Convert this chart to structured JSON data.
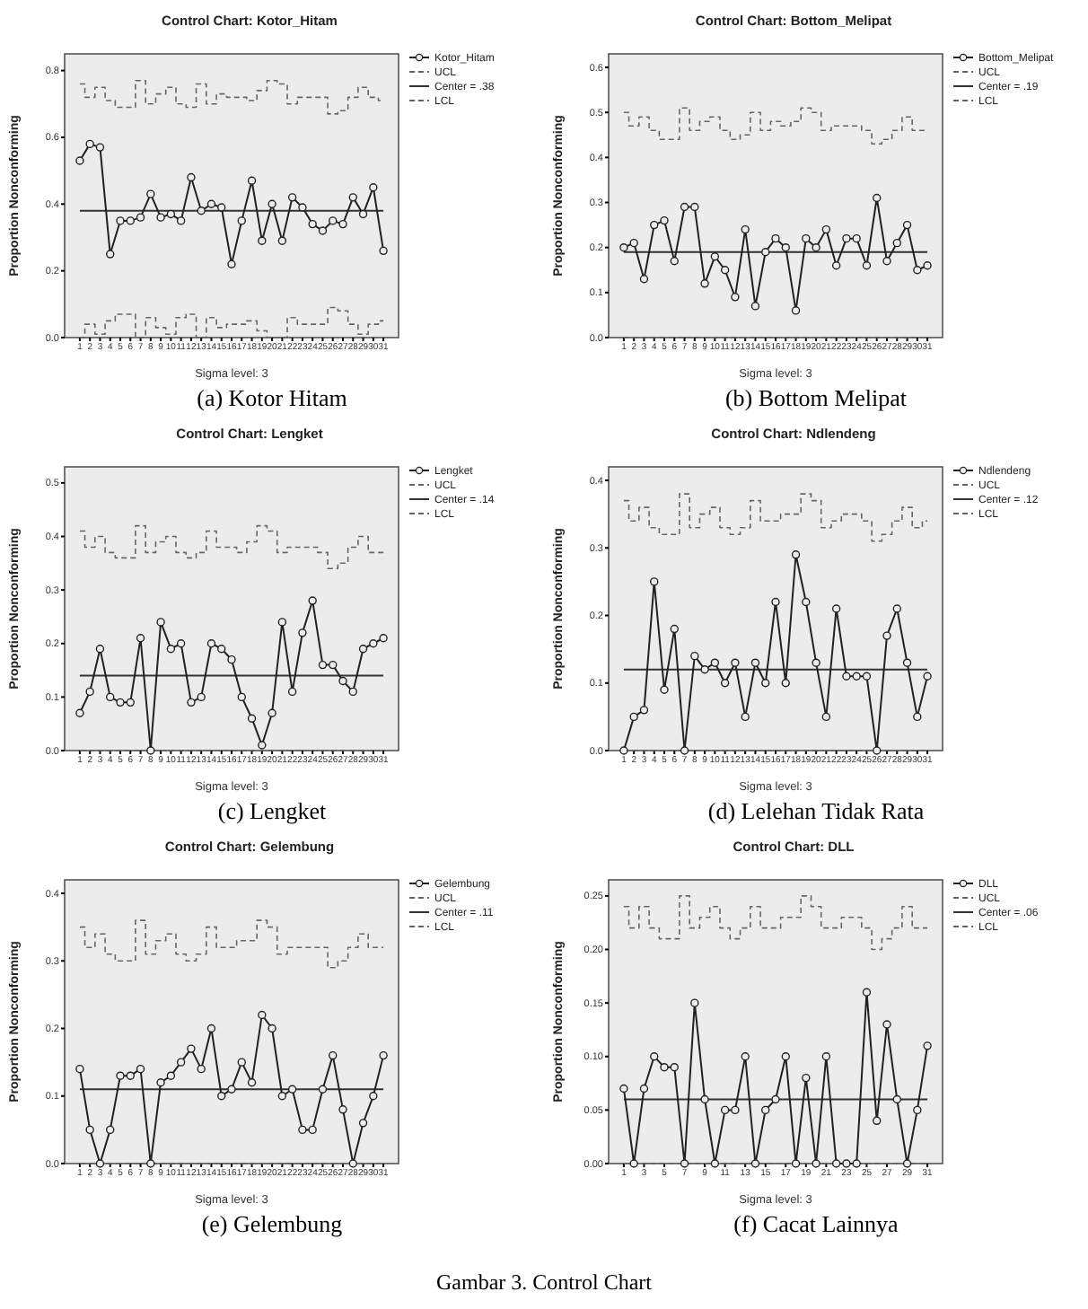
{
  "chart_data": [
    {
      "type": "line",
      "title": "Control Chart: Kotor_Hitam",
      "xlabel": "Sigma level: 3",
      "ylabel": "Proportion Nonconforming",
      "legend": "top right",
      "x": [
        1,
        2,
        3,
        4,
        5,
        6,
        7,
        8,
        9,
        10,
        11,
        12,
        13,
        14,
        15,
        16,
        17,
        18,
        19,
        20,
        21,
        22,
        23,
        24,
        25,
        26,
        27,
        28,
        29,
        30,
        31
      ],
      "xlim": [
        -0.5,
        32.5
      ],
      "xticks": [
        1,
        2,
        3,
        4,
        5,
        6,
        7,
        8,
        9,
        10,
        11,
        12,
        13,
        14,
        15,
        16,
        17,
        18,
        19,
        20,
        21,
        22,
        23,
        24,
        25,
        26,
        27,
        28,
        29,
        30,
        31
      ],
      "ylim": [
        0,
        0.85
      ],
      "yticks": [
        {
          "value": 0,
          "label": "0.0"
        },
        {
          "value": 0.2,
          "label": "0.2"
        },
        {
          "value": 0.4,
          "label": "0.4"
        },
        {
          "value": 0.6,
          "label": "0.6"
        },
        {
          "value": 0.8,
          "label": "0.8"
        }
      ],
      "series": [
        {
          "name": "Kotor_Hitam",
          "marker": "circle",
          "color": "#222222",
          "values": [
            0.53,
            0.58,
            0.57,
            0.25,
            0.35,
            0.35,
            0.36,
            0.43,
            0.36,
            0.37,
            0.35,
            0.48,
            0.38,
            0.4,
            0.39,
            0.22,
            0.35,
            0.47,
            0.29,
            0.4,
            0.29,
            0.42,
            0.39,
            0.34,
            0.32,
            0.35,
            0.34,
            0.42,
            0.37,
            0.45,
            0.26
          ]
        },
        {
          "name": "UCL",
          "type": "step",
          "line_style": "dashed",
          "color": "#666666",
          "values": [
            0.76,
            0.72,
            0.75,
            0.71,
            0.69,
            0.69,
            0.77,
            0.7,
            0.73,
            0.75,
            0.7,
            0.69,
            0.76,
            0.7,
            0.73,
            0.72,
            0.72,
            0.71,
            0.74,
            0.77,
            0.76,
            0.7,
            0.72,
            0.72,
            0.72,
            0.67,
            0.68,
            0.72,
            0.75,
            0.72,
            0.71
          ]
        },
        {
          "name": "Center = .38",
          "color": "#333333",
          "values": [
            0.38,
            0.38,
            0.38,
            0.38,
            0.38,
            0.38,
            0.38,
            0.38,
            0.38,
            0.38,
            0.38,
            0.38,
            0.38,
            0.38,
            0.38,
            0.38,
            0.38,
            0.38,
            0.38,
            0.38,
            0.38,
            0.38,
            0.38,
            0.38,
            0.38,
            0.38,
            0.38,
            0.38,
            0.38,
            0.38,
            0.38
          ]
        },
        {
          "name": "LCL",
          "type": "step",
          "line_style": "dashed",
          "color": "#666666",
          "values": [
            0,
            0.04,
            0.01,
            0.05,
            0.07,
            0.07,
            0,
            0.06,
            0.03,
            0.01,
            0.06,
            0.07,
            0,
            0.06,
            0.03,
            0.04,
            0.04,
            0.05,
            0.02,
            0,
            0,
            0.06,
            0.04,
            0.04,
            0.04,
            0.09,
            0.08,
            0.04,
            0.01,
            0.04,
            0.05
          ]
        }
      ],
      "annotations": [
        "(a) Kotor Hitam"
      ]
    },
    {
      "type": "line",
      "title": "Control Chart: Bottom_Melipat",
      "xlabel": "Sigma level: 3",
      "ylabel": "Proportion Nonconforming",
      "legend": "top right",
      "x": [
        1,
        2,
        3,
        4,
        5,
        6,
        7,
        8,
        9,
        10,
        11,
        12,
        13,
        14,
        15,
        16,
        17,
        18,
        19,
        20,
        21,
        22,
        23,
        24,
        25,
        26,
        27,
        28,
        29,
        30,
        31
      ],
      "xlim": [
        -0.5,
        32.5
      ],
      "xticks": [
        1,
        2,
        3,
        4,
        5,
        6,
        7,
        8,
        9,
        10,
        11,
        12,
        13,
        14,
        15,
        16,
        17,
        18,
        19,
        20,
        21,
        22,
        23,
        24,
        25,
        26,
        27,
        28,
        29,
        30,
        31
      ],
      "ylim": [
        0,
        0.63
      ],
      "yticks": [
        {
          "value": 0,
          "label": "0.0"
        },
        {
          "value": 0.1,
          "label": "0.1"
        },
        {
          "value": 0.2,
          "label": "0.2"
        },
        {
          "value": 0.3,
          "label": "0.3"
        },
        {
          "value": 0.4,
          "label": "0.4"
        },
        {
          "value": 0.5,
          "label": "0.5"
        },
        {
          "value": 0.6,
          "label": "0.6"
        }
      ],
      "series": [
        {
          "name": "Bottom_Melipat",
          "marker": "circle",
          "color": "#222222",
          "values": [
            0.2,
            0.21,
            0.13,
            0.25,
            0.26,
            0.17,
            0.29,
            0.29,
            0.12,
            0.18,
            0.15,
            0.09,
            0.24,
            0.07,
            0.19,
            0.22,
            0.2,
            0.06,
            0.22,
            0.2,
            0.24,
            0.16,
            0.22,
            0.22,
            0.16,
            0.31,
            0.17,
            0.21,
            0.25,
            0.15,
            0.16
          ]
        },
        {
          "name": "UCL",
          "type": "step",
          "line_style": "dashed",
          "color": "#666666",
          "values": [
            0.5,
            0.47,
            0.49,
            0.46,
            0.44,
            0.44,
            0.51,
            0.46,
            0.48,
            0.49,
            0.46,
            0.44,
            0.45,
            0.5,
            0.46,
            0.48,
            0.47,
            0.48,
            0.51,
            0.5,
            0.46,
            0.47,
            0.47,
            0.47,
            0.46,
            0.43,
            0.44,
            0.46,
            0.49,
            0.46,
            0.46
          ]
        },
        {
          "name": "Center = .19",
          "color": "#333333",
          "values": [
            0.19,
            0.19,
            0.19,
            0.19,
            0.19,
            0.19,
            0.19,
            0.19,
            0.19,
            0.19,
            0.19,
            0.19,
            0.19,
            0.19,
            0.19,
            0.19,
            0.19,
            0.19,
            0.19,
            0.19,
            0.19,
            0.19,
            0.19,
            0.19,
            0.19,
            0.19,
            0.19,
            0.19,
            0.19,
            0.19,
            0.19
          ]
        },
        {
          "name": "LCL",
          "type": "step",
          "line_style": "dashed",
          "color": "#666666",
          "values": [
            0,
            0,
            0,
            0,
            0,
            0,
            0,
            0,
            0,
            0,
            0,
            0,
            0,
            0,
            0,
            0,
            0,
            0,
            0,
            0,
            0,
            0,
            0,
            0,
            0,
            0,
            0,
            0,
            0,
            0,
            0
          ]
        }
      ],
      "annotations": [
        "(b) Bottom Melipat"
      ]
    },
    {
      "type": "line",
      "title": "Control Chart: Lengket",
      "xlabel": "Sigma level: 3",
      "ylabel": "Proportion Nonconforming",
      "legend": "top right",
      "x": [
        1,
        2,
        3,
        4,
        5,
        6,
        7,
        8,
        9,
        10,
        11,
        12,
        13,
        14,
        15,
        16,
        17,
        18,
        19,
        20,
        21,
        22,
        23,
        24,
        25,
        26,
        27,
        28,
        29,
        30,
        31
      ],
      "xlim": [
        -0.5,
        32.5
      ],
      "xticks": [
        1,
        2,
        3,
        4,
        5,
        6,
        7,
        8,
        9,
        10,
        11,
        12,
        13,
        14,
        15,
        16,
        17,
        18,
        19,
        20,
        21,
        22,
        23,
        24,
        25,
        26,
        27,
        28,
        29,
        30,
        31
      ],
      "ylim": [
        0,
        0.53
      ],
      "yticks": [
        {
          "value": 0,
          "label": "0.0"
        },
        {
          "value": 0.1,
          "label": "0.1"
        },
        {
          "value": 0.2,
          "label": "0.2"
        },
        {
          "value": 0.3,
          "label": "0.3"
        },
        {
          "value": 0.4,
          "label": "0.4"
        },
        {
          "value": 0.5,
          "label": "0.5"
        }
      ],
      "series": [
        {
          "name": "Lengket",
          "marker": "circle",
          "color": "#222222",
          "values": [
            0.07,
            0.11,
            0.19,
            0.1,
            0.09,
            0.09,
            0.21,
            0,
            0.24,
            0.19,
            0.2,
            0.09,
            0.1,
            0.2,
            0.19,
            0.17,
            0.1,
            0.06,
            0.01,
            0.07,
            0.24,
            0.11,
            0.22,
            0.28,
            0.16,
            0.16,
            0.13,
            0.11,
            0.19,
            0.2,
            0.21
          ]
        },
        {
          "name": "UCL",
          "type": "step",
          "line_style": "dashed",
          "color": "#666666",
          "values": [
            0.41,
            0.38,
            0.4,
            0.37,
            0.36,
            0.36,
            0.42,
            0.37,
            0.39,
            0.4,
            0.37,
            0.36,
            0.37,
            0.41,
            0.38,
            0.38,
            0.37,
            0.39,
            0.42,
            0.41,
            0.37,
            0.38,
            0.38,
            0.38,
            0.37,
            0.34,
            0.35,
            0.38,
            0.4,
            0.37,
            0.37
          ]
        },
        {
          "name": "Center = .14",
          "color": "#333333",
          "values": [
            0.14,
            0.14,
            0.14,
            0.14,
            0.14,
            0.14,
            0.14,
            0.14,
            0.14,
            0.14,
            0.14,
            0.14,
            0.14,
            0.14,
            0.14,
            0.14,
            0.14,
            0.14,
            0.14,
            0.14,
            0.14,
            0.14,
            0.14,
            0.14,
            0.14,
            0.14,
            0.14,
            0.14,
            0.14,
            0.14,
            0.14
          ]
        },
        {
          "name": "LCL",
          "type": "step",
          "line_style": "dashed",
          "color": "#666666",
          "values": [
            0,
            0,
            0,
            0,
            0,
            0,
            0,
            0,
            0,
            0,
            0,
            0,
            0,
            0,
            0,
            0,
            0,
            0,
            0,
            0,
            0,
            0,
            0,
            0,
            0,
            0,
            0,
            0,
            0,
            0,
            0
          ]
        }
      ],
      "annotations": [
        "(c) Lengket"
      ]
    },
    {
      "type": "line",
      "title": "Control Chart: Ndlendeng",
      "xlabel": "Sigma level: 3",
      "ylabel": "Proportion Nonconforming",
      "legend": "top right",
      "x": [
        1,
        2,
        3,
        4,
        5,
        6,
        7,
        8,
        9,
        10,
        11,
        12,
        13,
        14,
        15,
        16,
        17,
        18,
        19,
        20,
        21,
        22,
        23,
        24,
        25,
        26,
        27,
        28,
        29,
        30,
        31
      ],
      "xlim": [
        -0.5,
        32.5
      ],
      "xticks": [
        1,
        2,
        3,
        4,
        5,
        6,
        7,
        8,
        9,
        10,
        11,
        12,
        13,
        14,
        15,
        16,
        17,
        18,
        19,
        20,
        21,
        22,
        23,
        24,
        25,
        26,
        27,
        28,
        29,
        30,
        31
      ],
      "ylim": [
        0,
        0.42
      ],
      "yticks": [
        {
          "value": 0,
          "label": "0.0"
        },
        {
          "value": 0.1,
          "label": "0.1"
        },
        {
          "value": 0.2,
          "label": "0.2"
        },
        {
          "value": 0.3,
          "label": "0.3"
        },
        {
          "value": 0.4,
          "label": "0.4"
        }
      ],
      "series": [
        {
          "name": "Ndlendeng",
          "marker": "circle",
          "color": "#222222",
          "values": [
            0,
            0.05,
            0.06,
            0.25,
            0.09,
            0.18,
            0,
            0.14,
            0.12,
            0.13,
            0.1,
            0.13,
            0.05,
            0.13,
            0.1,
            0.22,
            0.1,
            0.29,
            0.22,
            0.13,
            0.05,
            0.21,
            0.11,
            0.11,
            0.11,
            0,
            0.17,
            0.21,
            0.13,
            0.05,
            0.11
          ]
        },
        {
          "name": "UCL",
          "type": "step",
          "line_style": "dashed",
          "color": "#666666",
          "values": [
            0.37,
            0.34,
            0.36,
            0.33,
            0.32,
            0.32,
            0.38,
            0.33,
            0.35,
            0.36,
            0.33,
            0.32,
            0.33,
            0.37,
            0.34,
            0.34,
            0.35,
            0.35,
            0.38,
            0.37,
            0.33,
            0.34,
            0.35,
            0.35,
            0.34,
            0.31,
            0.32,
            0.34,
            0.36,
            0.33,
            0.34
          ]
        },
        {
          "name": "Center = .12",
          "color": "#333333",
          "values": [
            0.12,
            0.12,
            0.12,
            0.12,
            0.12,
            0.12,
            0.12,
            0.12,
            0.12,
            0.12,
            0.12,
            0.12,
            0.12,
            0.12,
            0.12,
            0.12,
            0.12,
            0.12,
            0.12,
            0.12,
            0.12,
            0.12,
            0.12,
            0.12,
            0.12,
            0.12,
            0.12,
            0.12,
            0.12,
            0.12,
            0.12
          ]
        },
        {
          "name": "LCL",
          "type": "step",
          "line_style": "dashed",
          "color": "#666666",
          "values": [
            0,
            0,
            0,
            0,
            0,
            0,
            0,
            0,
            0,
            0,
            0,
            0,
            0,
            0,
            0,
            0,
            0,
            0,
            0,
            0,
            0,
            0,
            0,
            0,
            0,
            0,
            0,
            0,
            0,
            0,
            0
          ]
        }
      ],
      "annotations": [
        "(d) Lelehan Tidak Rata"
      ]
    },
    {
      "type": "line",
      "title": "Control Chart: Gelembung",
      "xlabel": "Sigma level: 3",
      "ylabel": "Proportion Nonconforming",
      "legend": "top right",
      "x": [
        1,
        2,
        3,
        4,
        5,
        6,
        7,
        8,
        9,
        10,
        11,
        12,
        13,
        14,
        15,
        16,
        17,
        18,
        19,
        20,
        21,
        22,
        23,
        24,
        25,
        26,
        27,
        28,
        29,
        30,
        31
      ],
      "xlim": [
        -0.5,
        32.5
      ],
      "xticks": [
        1,
        2,
        3,
        4,
        5,
        6,
        7,
        8,
        9,
        10,
        11,
        12,
        13,
        14,
        15,
        16,
        17,
        18,
        19,
        20,
        21,
        22,
        23,
        24,
        25,
        26,
        27,
        28,
        29,
        30,
        31
      ],
      "ylim": [
        0,
        0.42
      ],
      "yticks": [
        {
          "value": 0,
          "label": "0.0"
        },
        {
          "value": 0.1,
          "label": "0.1"
        },
        {
          "value": 0.2,
          "label": "0.2"
        },
        {
          "value": 0.3,
          "label": "0.3"
        },
        {
          "value": 0.4,
          "label": "0.4"
        }
      ],
      "series": [
        {
          "name": "Gelembung",
          "marker": "circle",
          "color": "#222222",
          "values": [
            0.14,
            0.05,
            0,
            0.05,
            0.13,
            0.13,
            0.14,
            0,
            0.12,
            0.13,
            0.15,
            0.17,
            0.14,
            0.2,
            0.1,
            0.11,
            0.15,
            0.12,
            0.22,
            0.2,
            0.1,
            0.11,
            0.05,
            0.05,
            0.11,
            0.16,
            0.08,
            0,
            0.06,
            0.1,
            0.16
          ]
        },
        {
          "name": "UCL",
          "type": "step",
          "line_style": "dashed",
          "color": "#666666",
          "values": [
            0.35,
            0.32,
            0.34,
            0.31,
            0.3,
            0.3,
            0.36,
            0.31,
            0.33,
            0.34,
            0.31,
            0.3,
            0.31,
            0.35,
            0.32,
            0.32,
            0.33,
            0.33,
            0.36,
            0.35,
            0.31,
            0.32,
            0.32,
            0.32,
            0.32,
            0.29,
            0.3,
            0.32,
            0.34,
            0.32,
            0.32
          ]
        },
        {
          "name": "Center = .11",
          "color": "#333333",
          "values": [
            0.11,
            0.11,
            0.11,
            0.11,
            0.11,
            0.11,
            0.11,
            0.11,
            0.11,
            0.11,
            0.11,
            0.11,
            0.11,
            0.11,
            0.11,
            0.11,
            0.11,
            0.11,
            0.11,
            0.11,
            0.11,
            0.11,
            0.11,
            0.11,
            0.11,
            0.11,
            0.11,
            0.11,
            0.11,
            0.11,
            0.11
          ]
        },
        {
          "name": "LCL",
          "type": "step",
          "line_style": "dashed",
          "color": "#666666",
          "values": [
            0,
            0,
            0,
            0,
            0,
            0,
            0,
            0,
            0,
            0,
            0,
            0,
            0,
            0,
            0,
            0,
            0,
            0,
            0,
            0,
            0,
            0,
            0,
            0,
            0,
            0,
            0,
            0,
            0,
            0,
            0
          ]
        }
      ],
      "annotations": [
        "(e) Gelembung"
      ]
    },
    {
      "type": "line",
      "title": "Control Chart: DLL",
      "xlabel": "Sigma level: 3",
      "ylabel": "Proportion Nonconforming",
      "legend": "top right",
      "x": [
        1,
        2,
        3,
        4,
        5,
        6,
        7,
        8,
        9,
        10,
        11,
        12,
        13,
        14,
        15,
        16,
        17,
        18,
        19,
        20,
        21,
        22,
        23,
        24,
        25,
        26,
        27,
        28,
        29,
        30,
        31
      ],
      "xlim": [
        -0.5,
        32.5
      ],
      "xticks": [
        1,
        3,
        5,
        7,
        9,
        11,
        13,
        15,
        17,
        19,
        21,
        23,
        25,
        27,
        29,
        31
      ],
      "ylim": [
        0,
        0.265
      ],
      "yticks": [
        {
          "value": 0,
          "label": "0.00"
        },
        {
          "value": 0.05,
          "label": "0.05"
        },
        {
          "value": 0.1,
          "label": "0.10"
        },
        {
          "value": 0.15,
          "label": "0.15"
        },
        {
          "value": 0.2,
          "label": "0.20"
        },
        {
          "value": 0.25,
          "label": "0.25"
        }
      ],
      "series": [
        {
          "name": "DLL",
          "marker": "circle",
          "color": "#222222",
          "values": [
            0.07,
            0,
            0.07,
            0.1,
            0.09,
            0.09,
            0,
            0.15,
            0.06,
            0,
            0.05,
            0.05,
            0.1,
            0,
            0.05,
            0.06,
            0.1,
            0,
            0.08,
            0,
            0.1,
            0,
            0,
            0,
            0.16,
            0.04,
            0.13,
            0.06,
            0,
            0.05,
            0.11
          ]
        },
        {
          "name": "UCL",
          "type": "step",
          "line_style": "dashed",
          "color": "#666666",
          "values": [
            0.24,
            0.22,
            0.24,
            0.22,
            0.21,
            0.21,
            0.25,
            0.22,
            0.23,
            0.24,
            0.22,
            0.21,
            0.22,
            0.24,
            0.22,
            0.22,
            0.23,
            0.23,
            0.25,
            0.24,
            0.22,
            0.22,
            0.23,
            0.23,
            0.22,
            0.2,
            0.21,
            0.22,
            0.24,
            0.22,
            0.22
          ]
        },
        {
          "name": "Center = .06",
          "color": "#333333",
          "values": [
            0.06,
            0.06,
            0.06,
            0.06,
            0.06,
            0.06,
            0.06,
            0.06,
            0.06,
            0.06,
            0.06,
            0.06,
            0.06,
            0.06,
            0.06,
            0.06,
            0.06,
            0.06,
            0.06,
            0.06,
            0.06,
            0.06,
            0.06,
            0.06,
            0.06,
            0.06,
            0.06,
            0.06,
            0.06,
            0.06,
            0.06
          ]
        },
        {
          "name": "LCL",
          "type": "step",
          "line_style": "dashed",
          "color": "#666666",
          "values": [
            0,
            0,
            0,
            0,
            0,
            0,
            0,
            0,
            0,
            0,
            0,
            0,
            0,
            0,
            0,
            0,
            0,
            0,
            0,
            0,
            0,
            0,
            0,
            0,
            0,
            0,
            0,
            0,
            0,
            0,
            0
          ]
        }
      ],
      "annotations": [
        "(f) Cacat Lainnya",
        "Gambar 3. Control Chart"
      ]
    }
  ]
}
